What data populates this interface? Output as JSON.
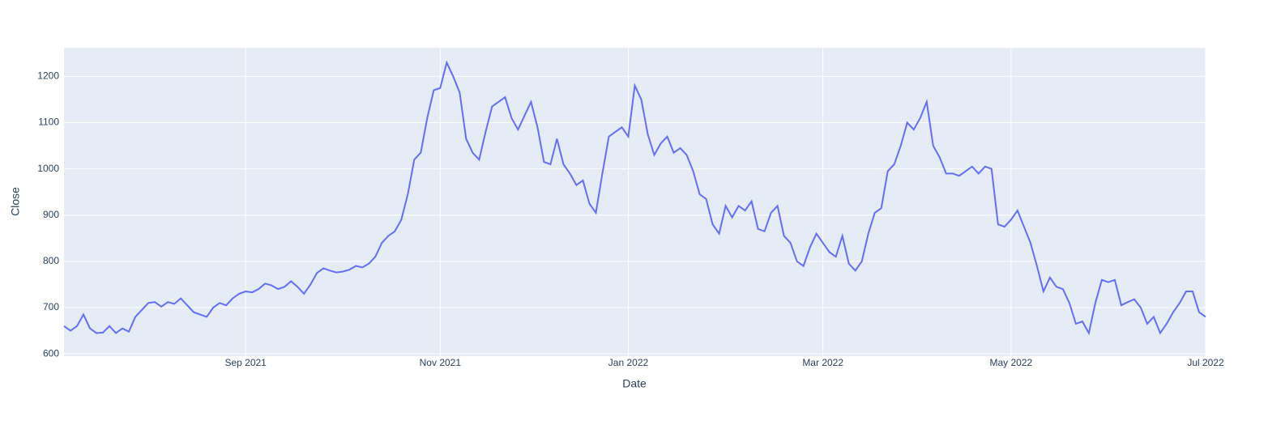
{
  "chart_data": {
    "type": "line",
    "x_label": "Date",
    "y_label": "Close",
    "categories": [
      null,
      null,
      null,
      null,
      null,
      null,
      null,
      null,
      null,
      null,
      null,
      null,
      null,
      null,
      null,
      null,
      null,
      null,
      null,
      null,
      null,
      null,
      null,
      null,
      null,
      null,
      null,
      null,
      "Sep 2021",
      null,
      null,
      null,
      null,
      null,
      null,
      null,
      null,
      null,
      null,
      null,
      null,
      null,
      null,
      null,
      null,
      null,
      null,
      null,
      null,
      null,
      null,
      null,
      null,
      null,
      null,
      null,
      null,
      null,
      "Nov 2021",
      null,
      null,
      null,
      null,
      null,
      null,
      null,
      null,
      null,
      null,
      null,
      null,
      null,
      null,
      null,
      null,
      null,
      null,
      null,
      null,
      null,
      null,
      null,
      null,
      null,
      null,
      null,
      null,
      "Jan 2022",
      null,
      null,
      null,
      null,
      null,
      null,
      null,
      null,
      null,
      null,
      null,
      null,
      null,
      null,
      null,
      null,
      null,
      null,
      null,
      null,
      null,
      null,
      null,
      null,
      null,
      null,
      null,
      null,
      null,
      "Mar 2022",
      null,
      null,
      null,
      null,
      null,
      null,
      null,
      null,
      null,
      null,
      null,
      null,
      null,
      null,
      null,
      null,
      null,
      null,
      null,
      null,
      null,
      null,
      null,
      null,
      null,
      null,
      null,
      null,
      "May 2022",
      null,
      null,
      null,
      null,
      null,
      null,
      null,
      null,
      null,
      null,
      null,
      null,
      null,
      null,
      null,
      null,
      null,
      null,
      null,
      null,
      null,
      null,
      null,
      null,
      null,
      null,
      null,
      null,
      null,
      "Jul 2022"
    ],
    "values": [
      660,
      650,
      660,
      685,
      655,
      645,
      646,
      660,
      645,
      655,
      648,
      680,
      695,
      710,
      712,
      702,
      712,
      708,
      720,
      705,
      690,
      685,
      680,
      700,
      710,
      705,
      720,
      730,
      735,
      733,
      740,
      752,
      748,
      740,
      745,
      757,
      745,
      730,
      750,
      775,
      785,
      780,
      776,
      778,
      782,
      790,
      787,
      795,
      810,
      840,
      855,
      865,
      890,
      945,
      1020,
      1035,
      1110,
      1170,
      1175,
      1230,
      1200,
      1165,
      1065,
      1035,
      1020,
      1080,
      1135,
      1145,
      1155,
      1110,
      1085,
      1115,
      1145,
      1090,
      1015,
      1010,
      1065,
      1010,
      990,
      965,
      975,
      925,
      905,
      990,
      1070,
      1080,
      1090,
      1070,
      1180,
      1150,
      1075,
      1030,
      1055,
      1070,
      1035,
      1045,
      1030,
      995,
      945,
      935,
      880,
      860,
      920,
      895,
      920,
      910,
      930,
      870,
      865,
      905,
      920,
      855,
      840,
      800,
      790,
      830,
      860,
      840,
      820,
      810,
      855,
      795,
      780,
      800,
      860,
      905,
      915,
      995,
      1010,
      1050,
      1100,
      1085,
      1110,
      1145,
      1050,
      1025,
      990,
      990,
      985,
      995,
      1005,
      990,
      1005,
      1000,
      880,
      875,
      890,
      910,
      875,
      840,
      790,
      735,
      765,
      745,
      740,
      710,
      665,
      670,
      645,
      710,
      760,
      755,
      760,
      705,
      712,
      718,
      700,
      665,
      680,
      645,
      665,
      690,
      710,
      735,
      735,
      690,
      680
    ],
    "color": "#636efa",
    "ylim": [
      595,
      1262
    ],
    "yticks": [
      600,
      700,
      800,
      900,
      1000,
      1100,
      1200
    ],
    "grid": true
  }
}
